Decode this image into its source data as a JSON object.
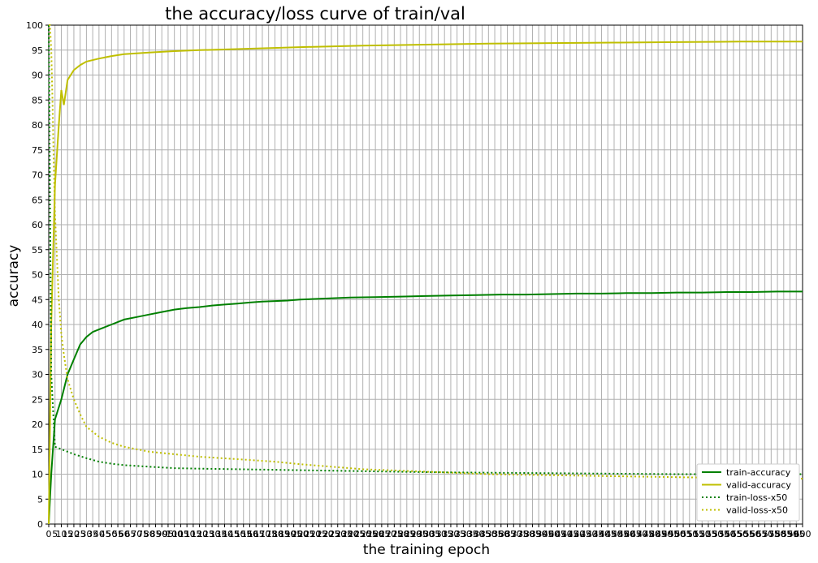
{
  "chart_data": {
    "type": "line",
    "title": "the accuracy/loss curve of train/val",
    "xlabel": "the training epoch",
    "ylabel": "accuracy",
    "xlim": [
      0,
      600
    ],
    "ylim": [
      0,
      100
    ],
    "y_ticks": [
      0,
      5,
      10,
      15,
      20,
      25,
      30,
      35,
      40,
      45,
      50,
      55,
      60,
      65,
      70,
      75,
      80,
      85,
      90,
      95,
      100
    ],
    "x_tick_step": 5,
    "grid": true,
    "legend_position": "lower-right",
    "series": [
      {
        "name": "train-accuracy",
        "color": "#008000",
        "style": "solid",
        "x": [
          0,
          2,
          5,
          10,
          15,
          20,
          25,
          30,
          35,
          40,
          50,
          60,
          70,
          80,
          90,
          100,
          110,
          120,
          130,
          140,
          150,
          160,
          170,
          180,
          190,
          200,
          220,
          240,
          260,
          280,
          300,
          320,
          340,
          360,
          380,
          400,
          420,
          440,
          460,
          480,
          500,
          520,
          540,
          560,
          580,
          600
        ],
        "y": [
          0,
          10,
          21,
          25,
          30,
          33,
          36,
          37.5,
          38.5,
          39,
          40,
          41,
          41.5,
          42,
          42.5,
          43,
          43.3,
          43.5,
          43.8,
          44,
          44.2,
          44.4,
          44.6,
          44.7,
          44.8,
          45,
          45.2,
          45.4,
          45.5,
          45.6,
          45.7,
          45.8,
          45.9,
          46,
          46,
          46.1,
          46.2,
          46.2,
          46.3,
          46.3,
          46.4,
          46.4,
          46.5,
          46.5,
          46.6,
          46.6
        ]
      },
      {
        "name": "valid-accuracy",
        "color": "#bfbf00",
        "style": "solid",
        "x": [
          0,
          2,
          5,
          8,
          10,
          12,
          15,
          20,
          25,
          30,
          40,
          50,
          60,
          80,
          100,
          120,
          150,
          200,
          250,
          300,
          350,
          400,
          450,
          500,
          550,
          600
        ],
        "y": [
          0,
          40,
          68,
          80,
          87,
          84,
          89,
          91,
          92,
          92.7,
          93.3,
          93.8,
          94.2,
          94.5,
          94.8,
          95,
          95.2,
          95.6,
          95.9,
          96.1,
          96.3,
          96.4,
          96.5,
          96.6,
          96.7,
          96.7
        ]
      },
      {
        "name": "train-loss-x50",
        "color": "#008000",
        "style": "dotted",
        "x": [
          0,
          2,
          5,
          10,
          15,
          20,
          30,
          40,
          50,
          60,
          80,
          100,
          120,
          150,
          200,
          250,
          300,
          350,
          400,
          450,
          500,
          550,
          600
        ],
        "y": [
          100,
          30,
          15.5,
          15,
          14.5,
          14,
          13.2,
          12.5,
          12.1,
          11.8,
          11.5,
          11.2,
          11.1,
          11,
          10.8,
          10.6,
          10.4,
          10.3,
          10.2,
          10.1,
          10,
          10,
          10
        ]
      },
      {
        "name": "valid-loss-x50",
        "color": "#bfbf00",
        "style": "dotted",
        "x": [
          0,
          1,
          2,
          3,
          4,
          5,
          8,
          10,
          12,
          15,
          20,
          25,
          30,
          40,
          50,
          60,
          70,
          80,
          100,
          120,
          150,
          180,
          200,
          250,
          300,
          350,
          400,
          450,
          500,
          550,
          600
        ],
        "y": [
          100,
          100,
          95,
          85,
          72,
          62,
          45,
          38,
          34,
          29,
          25,
          22,
          19.5,
          17.5,
          16.3,
          15.5,
          15,
          14.5,
          14,
          13.5,
          13,
          12.5,
          12,
          11,
          10.5,
          10,
          9.8,
          9.6,
          9.4,
          9.2,
          9.1
        ]
      }
    ]
  }
}
